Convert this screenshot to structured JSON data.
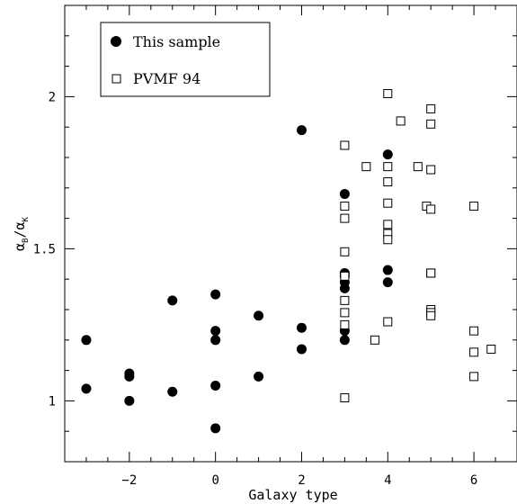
{
  "chart_data": {
    "type": "scatter",
    "xlabel": "Galaxy type",
    "ylabel_main": "α",
    "ylabel_sub1": "B",
    "ylabel_sep": "/",
    "ylabel_sub2": "K",
    "xlim": [
      -3.5,
      7.0
    ],
    "ylim": [
      0.8,
      2.3
    ],
    "xticks": [
      -2,
      0,
      2,
      4,
      6
    ],
    "xtick_labels": [
      "−2",
      "0",
      "2",
      "4",
      "6"
    ],
    "yticks": [
      1,
      1.5,
      2
    ],
    "ytick_labels": [
      "1",
      "1.5",
      "2"
    ],
    "x_minor_step": 0.5,
    "y_minor_step": 0.1,
    "grid": false,
    "legend_position": "top-left",
    "series": [
      {
        "name": "This sample",
        "marker": "filled-circle",
        "color": "#000000",
        "points": [
          [
            -3,
            1.2
          ],
          [
            -3,
            1.04
          ],
          [
            -2,
            1.09
          ],
          [
            -2,
            1.08
          ],
          [
            -2,
            1.0
          ],
          [
            -1,
            1.33
          ],
          [
            -1,
            1.03
          ],
          [
            0,
            1.35
          ],
          [
            0,
            1.23
          ],
          [
            0,
            1.2
          ],
          [
            0,
            1.05
          ],
          [
            0,
            0.91
          ],
          [
            1,
            1.28
          ],
          [
            1,
            1.08
          ],
          [
            2,
            1.89
          ],
          [
            2,
            1.24
          ],
          [
            2,
            1.17
          ],
          [
            3,
            1.68
          ],
          [
            3,
            1.42
          ],
          [
            3,
            1.41
          ],
          [
            3,
            1.39
          ],
          [
            3,
            1.37
          ],
          [
            3,
            1.23
          ],
          [
            3,
            1.2
          ],
          [
            4,
            1.81
          ],
          [
            4,
            1.43
          ],
          [
            4,
            1.39
          ]
        ]
      },
      {
        "name": "PVMF 94",
        "marker": "open-square",
        "color": "#000000",
        "points": [
          [
            3,
            1.84
          ],
          [
            3,
            1.64
          ],
          [
            3,
            1.6
          ],
          [
            3,
            1.49
          ],
          [
            3,
            1.41
          ],
          [
            3,
            1.33
          ],
          [
            3,
            1.29
          ],
          [
            3,
            1.25
          ],
          [
            3,
            1.01
          ],
          [
            3.5,
            1.77
          ],
          [
            3.7,
            1.2
          ],
          [
            4,
            2.01
          ],
          [
            4,
            1.77
          ],
          [
            4,
            1.72
          ],
          [
            4,
            1.65
          ],
          [
            4,
            1.58
          ],
          [
            4,
            1.55
          ],
          [
            4,
            1.53
          ],
          [
            4,
            1.26
          ],
          [
            4.3,
            1.92
          ],
          [
            4.7,
            1.77
          ],
          [
            4.9,
            1.64
          ],
          [
            5,
            1.96
          ],
          [
            5,
            1.91
          ],
          [
            5,
            1.76
          ],
          [
            5,
            1.63
          ],
          [
            5,
            1.42
          ],
          [
            5,
            1.42
          ],
          [
            5,
            1.3
          ],
          [
            5,
            1.29
          ],
          [
            5,
            1.28
          ],
          [
            6,
            1.64
          ],
          [
            6,
            1.23
          ],
          [
            6,
            1.16
          ],
          [
            6,
            1.08
          ],
          [
            6.4,
            1.17
          ]
        ]
      }
    ]
  }
}
